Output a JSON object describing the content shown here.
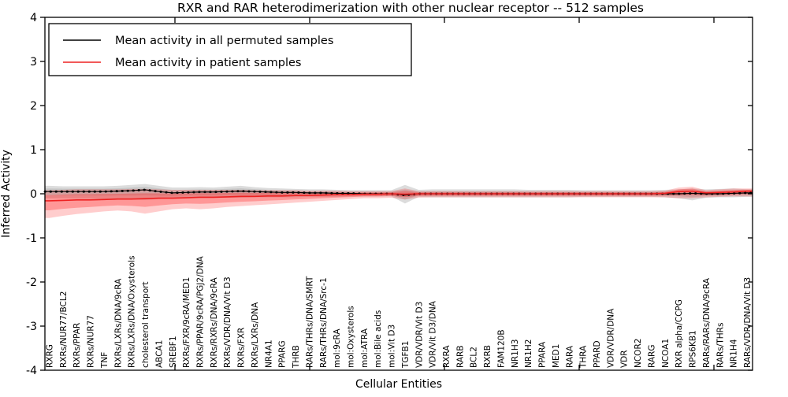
{
  "title": "RXR and RAR heterodimerization with other nuclear receptor -- 512 samples",
  "axes": {
    "ylabel": "Inferred Activity",
    "xlabel": "Cellular Entities",
    "yticks": [
      "4",
      "3",
      "2",
      "1",
      "0",
      "-1",
      "-2",
      "-3",
      "-4"
    ]
  },
  "legend": {
    "items": [
      {
        "label": "Mean activity in all permuted samples",
        "color": "#000000"
      },
      {
        "label": "Mean activity in patient samples",
        "color": "#ee2222"
      }
    ]
  },
  "chart_data": {
    "type": "line",
    "title": "RXR and RAR heterodimerization with other nuclear receptor -- 512 samples",
    "xlabel": "Cellular Entities",
    "ylabel": "Inferred Activity",
    "ylim": [
      -4,
      4
    ],
    "grid": false,
    "legend_position": "upper left",
    "categories": [
      "RXRG",
      "RXRs/NUR77/BCL2",
      "RXRs/PPAR",
      "RXRs/NUR77",
      "TNF",
      "RXRs/LXRs/DNA/9cRA",
      "RXRs/LXRs/DNA/Oxysterols",
      "cholesterol transport",
      "ABCA1",
      "SREBF1",
      "RXRs/FXR/9cRA/MED1",
      "RXRs/PPAR/9cRA/PGJ2/DNA",
      "RXRs/RXRs/DNA/9cRA",
      "RXRs/VDR/DNA/Vit D3",
      "RXRs/FXR",
      "RXRs/LXRs/DNA",
      "NR4A1",
      "PPARG",
      "THRB",
      "RARs/THRs/DNA/SMRT",
      "RARs/THRs/DNA/Src-1",
      "mol:9cRA",
      "mol:Oxysterols",
      "mol:ATRA",
      "mol:Bile acids",
      "mol:Vit D3",
      "TGFB1",
      "VDR/VDR/Vit D3",
      "VDR/Vit D3/DNA",
      "RXRA",
      "RARB",
      "BCL2",
      "RXRB",
      "FAM120B",
      "NR1H3",
      "NR1H2",
      "PPARA",
      "MED1",
      "RARA",
      "THRA",
      "PPARD",
      "VDR/VDR/DNA",
      "VDR",
      "NCOR2",
      "RARG",
      "NCOA1",
      "RXR alpha/CCPG",
      "RPS6KB1",
      "RARs/RARs/DNA/9cRA",
      "RARs/THRs",
      "NR1H4",
      "RARs/VDR/DNA/Vit D3"
    ],
    "series": [
      {
        "name": "Mean activity in all permuted samples",
        "color": "#000000",
        "band_color": "#555555",
        "values": [
          0.05,
          0.05,
          0.05,
          0.05,
          0.05,
          0.06,
          0.07,
          0.09,
          0.05,
          0.02,
          0.03,
          0.04,
          0.04,
          0.05,
          0.06,
          0.05,
          0.04,
          0.03,
          0.03,
          0.02,
          0.02,
          0.01,
          0.01,
          0.0,
          0.0,
          0.0,
          -0.03,
          0.0,
          0.0,
          0.0,
          0.0,
          0.0,
          0.0,
          0.0,
          0.0,
          0.0,
          0.0,
          0.0,
          0.0,
          0.0,
          0.0,
          0.0,
          0.0,
          0.0,
          0.0,
          0.0,
          0.0,
          0.01,
          0.0,
          0.0,
          0.01,
          0.02
        ],
        "band_upper": [
          0.18,
          0.17,
          0.17,
          0.17,
          0.17,
          0.18,
          0.2,
          0.22,
          0.18,
          0.14,
          0.14,
          0.15,
          0.14,
          0.16,
          0.18,
          0.15,
          0.13,
          0.12,
          0.11,
          0.1,
          0.1,
          0.09,
          0.08,
          0.08,
          0.08,
          0.08,
          0.2,
          0.09,
          0.1,
          0.1,
          0.1,
          0.1,
          0.1,
          0.1,
          0.1,
          0.09,
          0.09,
          0.09,
          0.09,
          0.08,
          0.08,
          0.08,
          0.08,
          0.08,
          0.08,
          0.09,
          0.1,
          0.12,
          0.1,
          0.11,
          0.12,
          0.1
        ],
        "band_lower": [
          -0.1,
          -0.1,
          -0.11,
          -0.11,
          -0.12,
          -0.12,
          -0.13,
          -0.14,
          -0.12,
          -0.1,
          -0.09,
          -0.09,
          -0.09,
          -0.09,
          -0.09,
          -0.08,
          -0.08,
          -0.08,
          -0.08,
          -0.07,
          -0.07,
          -0.07,
          -0.06,
          -0.06,
          -0.06,
          -0.06,
          -0.22,
          -0.07,
          -0.08,
          -0.08,
          -0.08,
          -0.08,
          -0.08,
          -0.08,
          -0.08,
          -0.08,
          -0.08,
          -0.08,
          -0.08,
          -0.07,
          -0.07,
          -0.07,
          -0.07,
          -0.07,
          -0.07,
          -0.08,
          -0.1,
          -0.15,
          -0.09,
          -0.08,
          -0.08,
          -0.07
        ]
      },
      {
        "name": "Mean activity in patient samples",
        "color": "#ee2222",
        "band_color": "#ff1a1a",
        "values": [
          -0.16,
          -0.15,
          -0.14,
          -0.14,
          -0.13,
          -0.12,
          -0.12,
          -0.11,
          -0.1,
          -0.1,
          -0.09,
          -0.08,
          -0.08,
          -0.07,
          -0.06,
          -0.06,
          -0.05,
          -0.05,
          -0.04,
          -0.04,
          -0.03,
          -0.02,
          -0.02,
          -0.01,
          -0.01,
          0.0,
          -0.01,
          0.0,
          0.0,
          0.0,
          0.0,
          0.0,
          0.0,
          0.0,
          0.0,
          0.0,
          0.0,
          0.0,
          0.0,
          0.0,
          0.0,
          0.0,
          0.0,
          0.0,
          0.0,
          0.01,
          0.05,
          0.06,
          0.02,
          0.03,
          0.04,
          0.06
        ],
        "band_upper": [
          0.08,
          0.09,
          0.1,
          0.1,
          0.1,
          0.1,
          0.11,
          0.11,
          0.1,
          0.09,
          0.09,
          0.09,
          0.09,
          0.09,
          0.09,
          0.08,
          0.08,
          0.08,
          0.08,
          0.07,
          0.07,
          0.07,
          0.06,
          0.06,
          0.06,
          0.06,
          0.12,
          0.06,
          0.06,
          0.06,
          0.06,
          0.06,
          0.06,
          0.06,
          0.06,
          0.06,
          0.06,
          0.06,
          0.06,
          0.06,
          0.06,
          0.06,
          0.06,
          0.06,
          0.06,
          0.07,
          0.14,
          0.16,
          0.08,
          0.1,
          0.12,
          0.12
        ],
        "band_lower": [
          -0.55,
          -0.5,
          -0.46,
          -0.43,
          -0.4,
          -0.38,
          -0.4,
          -0.45,
          -0.4,
          -0.35,
          -0.33,
          -0.35,
          -0.33,
          -0.3,
          -0.28,
          -0.26,
          -0.24,
          -0.22,
          -0.2,
          -0.18,
          -0.16,
          -0.14,
          -0.12,
          -0.1,
          -0.1,
          -0.09,
          -0.13,
          -0.09,
          -0.08,
          -0.08,
          -0.08,
          -0.08,
          -0.08,
          -0.08,
          -0.08,
          -0.08,
          -0.08,
          -0.08,
          -0.08,
          -0.08,
          -0.08,
          -0.08,
          -0.08,
          -0.08,
          -0.08,
          -0.08,
          -0.1,
          -0.1,
          -0.08,
          -0.07,
          -0.06,
          -0.06
        ]
      }
    ]
  }
}
